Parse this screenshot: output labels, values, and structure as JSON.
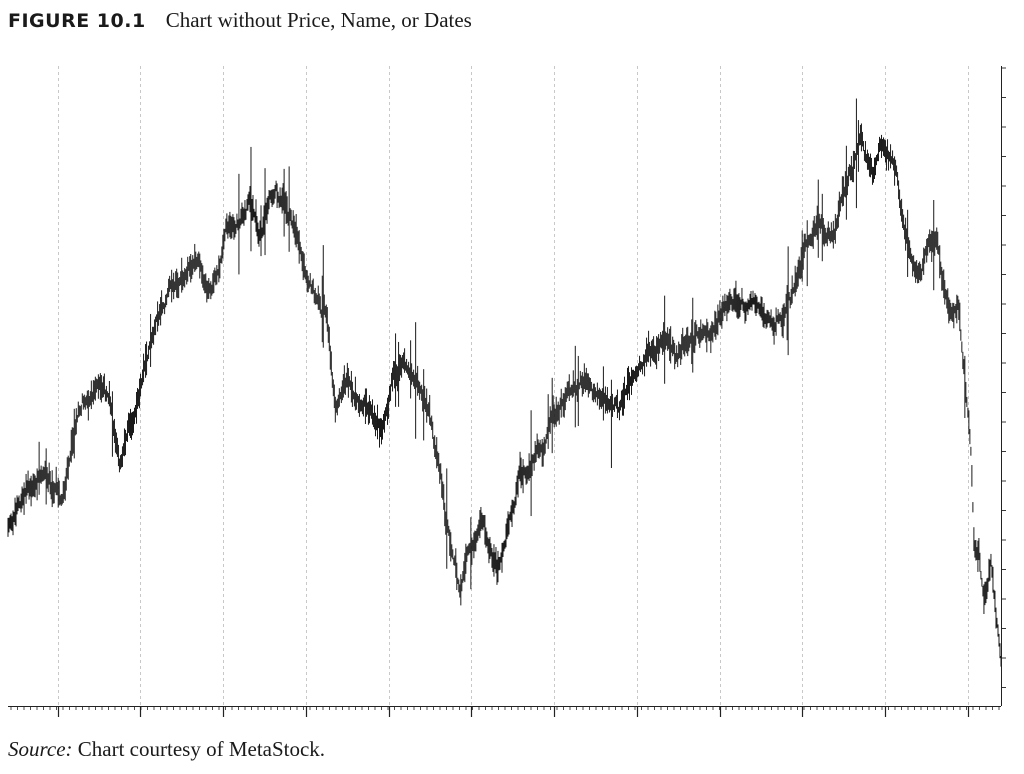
{
  "figure": {
    "label": "FIGURE 10.1",
    "caption": "Chart without Price, Name, or Dates"
  },
  "source": {
    "label": "Source:",
    "text": " Chart courtesy of MetaStock."
  },
  "colors": {
    "bars": "#1a1a1a",
    "grid": "#bbbbbb",
    "axis": "#222222"
  },
  "chart_data": {
    "type": "line",
    "title": "",
    "xlabel": "",
    "ylabel": "",
    "x_axis_labels": "none",
    "y_axis_labels": "none",
    "grid": "vertical dashed lines at major time divisions",
    "n_major_divisions": 12,
    "ylim": [
      0,
      100
    ],
    "x_range": [
      0,
      100
    ],
    "style": "high-low price bars, ~1000 bars",
    "close_path": [
      [
        0,
        27.5
      ],
      [
        1.8,
        33.5
      ],
      [
        3.6,
        36.5
      ],
      [
        5.4,
        33.5
      ],
      [
        6.3,
        38
      ],
      [
        7.5,
        48
      ],
      [
        9.2,
        50
      ],
      [
        10.2,
        48
      ],
      [
        11.2,
        36
      ],
      [
        12.8,
        45
      ],
      [
        13.8,
        54
      ],
      [
        15.5,
        63
      ],
      [
        17.5,
        67
      ],
      [
        19,
        69
      ],
      [
        20.5,
        64
      ],
      [
        22,
        74
      ],
      [
        23.7,
        77
      ],
      [
        24.5,
        78
      ],
      [
        25.5,
        75
      ],
      [
        27,
        80
      ],
      [
        28.5,
        76
      ],
      [
        30,
        68
      ],
      [
        32,
        61
      ],
      [
        33,
        48
      ],
      [
        34.2,
        51
      ],
      [
        36.2,
        47
      ],
      [
        37.5,
        42
      ],
      [
        38.8,
        52
      ],
      [
        40.5,
        53
      ],
      [
        42,
        47
      ],
      [
        43.5,
        37
      ],
      [
        44.5,
        25
      ],
      [
        45.5,
        19
      ],
      [
        46.5,
        24
      ],
      [
        47.7,
        29
      ],
      [
        48.6,
        24
      ],
      [
        49.3,
        20
      ],
      [
        50.2,
        26
      ],
      [
        51.5,
        35
      ],
      [
        53,
        38
      ],
      [
        55,
        44
      ],
      [
        56.8,
        50
      ],
      [
        58.3,
        51
      ],
      [
        60,
        47
      ],
      [
        61.5,
        48
      ],
      [
        63,
        51
      ],
      [
        64.5,
        55
      ],
      [
        66.3,
        58
      ],
      [
        67.5,
        55
      ],
      [
        69,
        59
      ],
      [
        70.5,
        57
      ],
      [
        72,
        62
      ],
      [
        74,
        64
      ],
      [
        76,
        61
      ],
      [
        77.2,
        59
      ],
      [
        79,
        64
      ],
      [
        80.5,
        72
      ],
      [
        82,
        76
      ],
      [
        83,
        74
      ],
      [
        84.5,
        82
      ],
      [
        86,
        89
      ],
      [
        87,
        84
      ],
      [
        88,
        87
      ],
      [
        89.4,
        84
      ],
      [
        90.2,
        74
      ],
      [
        91.5,
        66
      ],
      [
        92.5,
        70
      ],
      [
        93.5,
        74
      ],
      [
        94.5,
        63
      ],
      [
        95.8,
        62
      ],
      [
        96.5,
        49
      ],
      [
        97,
        40
      ],
      [
        97.3,
        24
      ],
      [
        97.8,
        22
      ],
      [
        98.3,
        15
      ],
      [
        99,
        23
      ],
      [
        99.5,
        15
      ],
      [
        100,
        7.5
      ]
    ]
  }
}
